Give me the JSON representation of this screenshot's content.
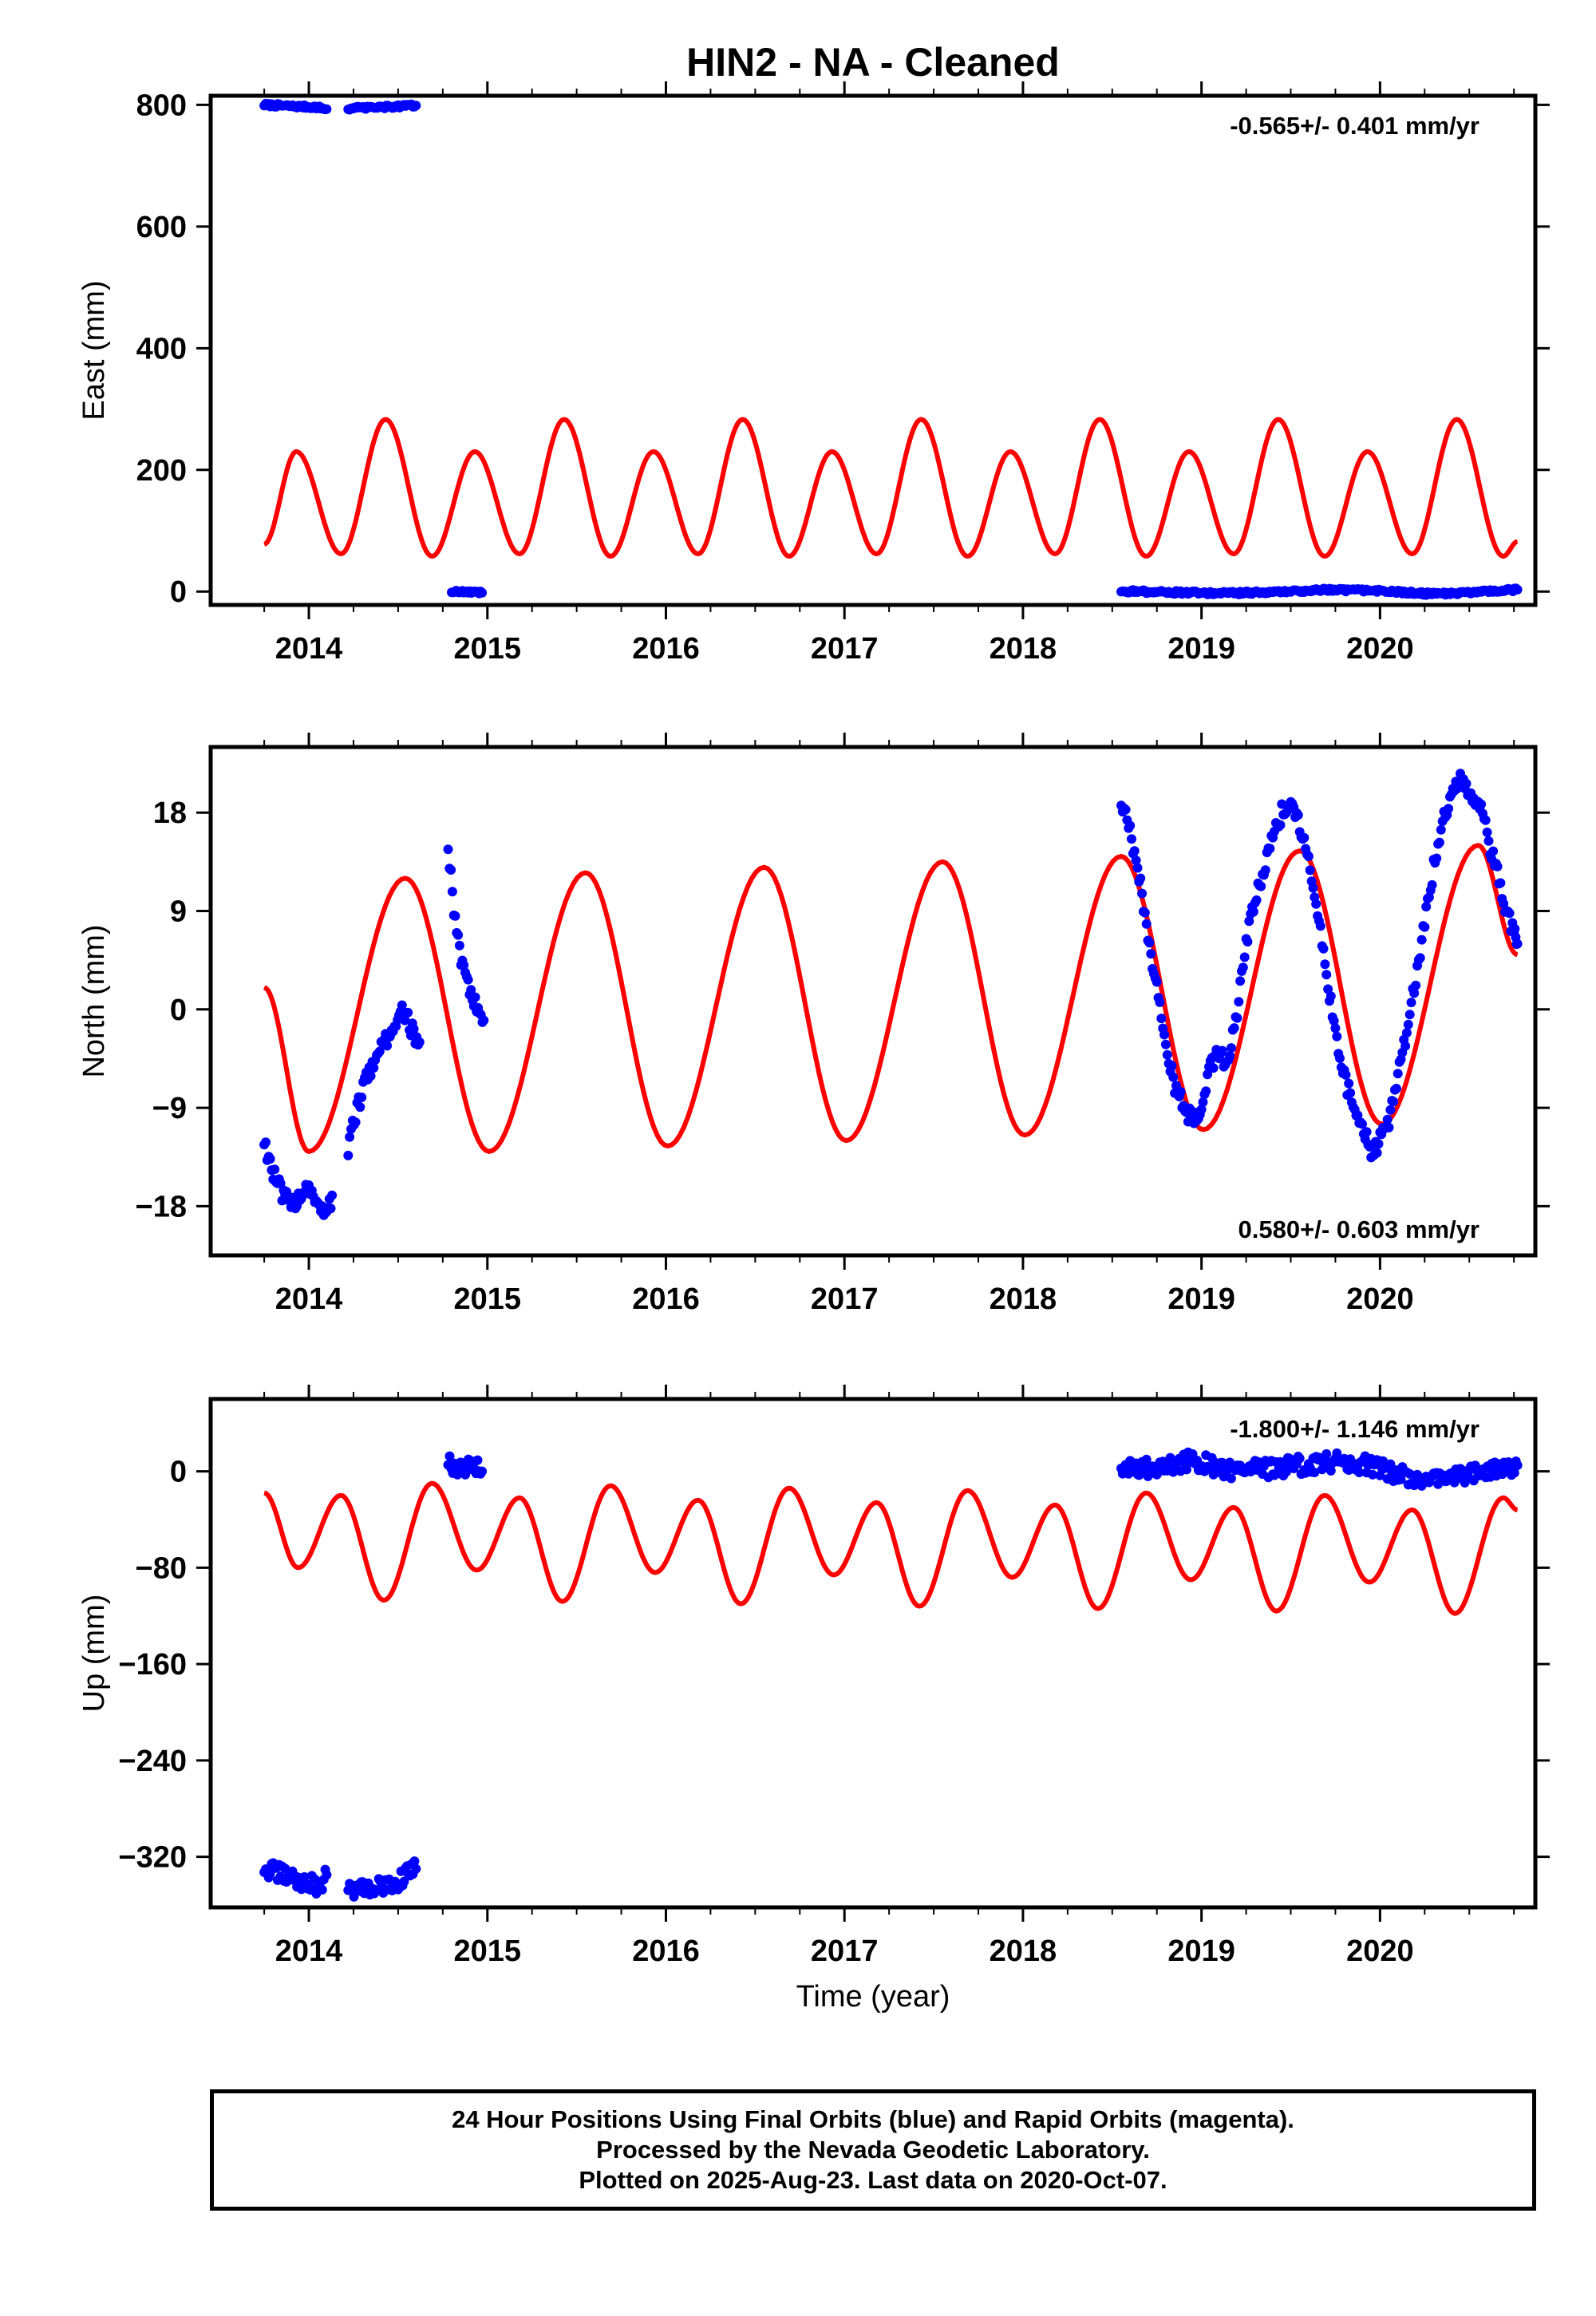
{
  "title": "HIN2  - NA - Cleaned",
  "xlabel": "Time (year)",
  "footer": {
    "line1": "24 Hour Positions Using Final Orbits (blue) and Rapid Orbits (magenta).",
    "line2": "Processed by the Nevada Geodetic Laboratory.",
    "line3": "Plotted on 2025-Aug-23. Last data on 2020-Oct-07."
  },
  "colors": {
    "data": "#0000ff",
    "model": "#ff0000",
    "axes": "#000000"
  },
  "chart_data": [
    {
      "type": "scatter",
      "panel": "east",
      "ylabel": "East (mm)",
      "rate_label": "-0.565+/- 0.401 mm/yr",
      "rate_position": "top-right",
      "xlim": [
        2013.45,
        2020.87
      ],
      "ylim": [
        -22,
        815
      ],
      "xticks": [
        "2014",
        "2015",
        "2016",
        "2017",
        "2018",
        "2019",
        "2020"
      ],
      "yticks": [
        "0",
        "200",
        "400",
        "600",
        "800"
      ],
      "series": [
        {
          "role": "observed",
          "segments": [
            {
              "x": [
                2013.75,
                2013.9,
                2014.05,
                2014.1
              ],
              "y": [
                800,
                798,
                796,
                793
              ]
            },
            {
              "x": [
                2014.22,
                2014.4,
                2014.6
              ],
              "y": [
                794,
                796,
                799
              ]
            },
            {
              "x": [
                2014.8,
                2014.97
              ],
              "y": [
                0,
                -2
              ]
            },
            {
              "x": [
                2018.55,
                2018.8,
                2019.1,
                2019.4,
                2019.7,
                2020.0,
                2020.3,
                2020.6,
                2020.77
              ],
              "y": [
                1,
                -1,
                -3,
                -1,
                3,
                1,
                -4,
                0,
                3
              ]
            }
          ]
        },
        {
          "role": "model",
          "segments": [
            {
              "x": [
                2013.75,
                2013.93,
                2014.18,
                2014.43,
                2014.69,
                2014.93,
                2015.18,
                2015.43,
                2015.69,
                2015.93,
                2016.18,
                2016.43,
                2016.69,
                2016.93,
                2017.18,
                2017.43,
                2017.69,
                2017.93,
                2018.18,
                2018.43,
                2018.69,
                2018.93,
                2019.18,
                2019.43,
                2019.69,
                2019.93,
                2020.18,
                2020.43,
                2020.69,
                2020.77
              ],
              "y": [
                78,
                230,
                62,
                283,
                58,
                230,
                62,
                283,
                58,
                230,
                62,
                283,
                58,
                230,
                62,
                283,
                58,
                230,
                62,
                283,
                58,
                230,
                62,
                283,
                58,
                230,
                62,
                283,
                58,
                82
              ]
            }
          ]
        }
      ]
    },
    {
      "type": "scatter",
      "panel": "north",
      "ylabel": "North (mm)",
      "rate_label": "0.580+/- 0.603 mm/yr",
      "rate_position": "bottom-right",
      "xlim": [
        2013.45,
        2020.87
      ],
      "ylim": [
        -22.5,
        24
      ],
      "xticks": [
        "2014",
        "2015",
        "2016",
        "2017",
        "2018",
        "2019",
        "2020"
      ],
      "yticks": [
        "−18",
        "−9",
        "0",
        "9",
        "18"
      ],
      "ytick_values": [
        -18,
        -9,
        0,
        9,
        18
      ],
      "series": [
        {
          "role": "observed",
          "segments": [
            {
              "x": [
                2013.75,
                2013.8,
                2013.85,
                2013.9,
                2013.95,
                2014.0,
                2014.05,
                2014.1,
                2014.13
              ],
              "y": [
                -12,
                -15,
                -17,
                -18,
                -17,
                -16,
                -18,
                -19,
                -17
              ]
            },
            {
              "x": [
                2014.22,
                2014.27,
                2014.33,
                2014.38,
                2014.43,
                2014.48,
                2014.53,
                2014.58,
                2014.62
              ],
              "y": [
                -13,
                -9,
                -6,
                -4,
                -3,
                -1,
                0,
                -2,
                -3
              ]
            },
            {
              "x": [
                2014.78,
                2014.82,
                2014.86,
                2014.9,
                2014.94,
                2014.98
              ],
              "y": [
                15,
                8,
                4,
                2,
                0,
                -1
              ]
            },
            {
              "x": [
                2018.55,
                2018.6,
                2018.65,
                2018.7,
                2018.75,
                2018.8,
                2018.85,
                2018.9,
                2018.95,
                2019.0,
                2019.05,
                2019.1,
                2019.15,
                2019.2,
                2019.25,
                2019.3,
                2019.35,
                2019.4,
                2019.45,
                2019.5,
                2019.55,
                2019.6,
                2019.65,
                2019.7,
                2019.75,
                2019.8,
                2019.85,
                2019.9,
                2019.95,
                2020.0,
                2020.05,
                2020.1,
                2020.15,
                2020.2,
                2020.25,
                2020.3,
                2020.35,
                2020.4,
                2020.45,
                2020.5,
                2020.55,
                2020.6,
                2020.65,
                2020.7,
                2020.75,
                2020.77
              ],
              "y": [
                19,
                16,
                12,
                7,
                2,
                -3,
                -7,
                -9,
                -10,
                -9,
                -5,
                -4,
                -5,
                0,
                6,
                10,
                13,
                16,
                18,
                19,
                17,
                14,
                9,
                3,
                -2,
                -6,
                -9,
                -11,
                -13,
                -12,
                -10,
                -6,
                -2,
                3,
                8,
                13,
                17,
                20,
                21,
                20,
                19,
                16,
                13,
                9,
                7,
                6
              ]
            }
          ]
        },
        {
          "role": "model",
          "segments": [
            {
              "x": [
                2013.75,
                2014.0,
                2014.54,
                2015.01,
                2015.55,
                2016.01,
                2016.55,
                2017.01,
                2017.55,
                2018.01,
                2018.55,
                2019.01,
                2019.55,
                2020.01,
                2020.55,
                2020.77
              ],
              "y": [
                2,
                -13,
                12,
                -13,
                12.5,
                -12.5,
                13,
                -12,
                13.5,
                -11.5,
                14,
                -11,
                14.5,
                -10.5,
                15,
                5
              ]
            }
          ]
        }
      ]
    },
    {
      "type": "scatter",
      "panel": "up",
      "ylabel": "Up (mm)",
      "rate_label": "-1.800+/- 1.146 mm/yr",
      "rate_position": "top-right",
      "xlim": [
        2013.45,
        2020.87
      ],
      "ylim": [
        -362,
        60
      ],
      "xticks": [
        "2014",
        "2015",
        "2016",
        "2017",
        "2018",
        "2019",
        "2020"
      ],
      "yticks": [
        "−320",
        "−240",
        "−160",
        "−80",
        "0"
      ],
      "ytick_values": [
        -320,
        -240,
        -160,
        -80,
        0
      ],
      "series": [
        {
          "role": "observed",
          "segments": [
            {
              "x": [
                2013.75,
                2013.85,
                2013.95,
                2014.05,
                2014.1
              ],
              "y": [
                -330,
                -335,
                -340,
                -345,
                -335
              ]
            },
            {
              "x": [
                2014.22,
                2014.35,
                2014.5,
                2014.6
              ],
              "y": [
                -345,
                -348,
                -340,
                -330
              ]
            },
            {
              "x": [
                2014.78,
                2014.85,
                2014.92,
                2014.97
              ],
              "y": [
                8,
                0,
                5,
                0
              ]
            },
            {
              "x": [
                2018.55,
                2018.75,
                2018.95,
                2019.15,
                2019.35,
                2019.55,
                2019.75,
                2019.95,
                2020.15,
                2020.35,
                2020.55,
                2020.77
              ],
              "y": [
                5,
                2,
                10,
                0,
                2,
                5,
                8,
                5,
                -5,
                -8,
                0,
                5
              ]
            }
          ]
        },
        {
          "role": "model",
          "segments": [
            {
              "x": [
                2013.75,
                2013.94,
                2014.18,
                2014.42,
                2014.69,
                2014.94,
                2015.18,
                2015.42,
                2015.69,
                2015.94,
                2016.18,
                2016.42,
                2016.69,
                2016.94,
                2017.18,
                2017.42,
                2017.69,
                2017.94,
                2018.18,
                2018.42,
                2018.69,
                2018.94,
                2019.18,
                2019.42,
                2019.69,
                2019.94,
                2020.18,
                2020.42,
                2020.69,
                2020.77
              ],
              "y": [
                -18,
                -80,
                -20,
                -107,
                -10,
                -82,
                -22,
                -108,
                -12,
                -84,
                -24,
                -110,
                -14,
                -86,
                -26,
                -112,
                -16,
                -88,
                -28,
                -114,
                -18,
                -90,
                -30,
                -116,
                -20,
                -92,
                -32,
                -118,
                -22,
                -32
              ]
            }
          ]
        }
      ]
    }
  ]
}
